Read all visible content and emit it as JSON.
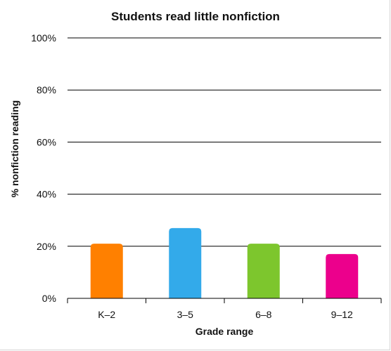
{
  "chart_data": {
    "type": "bar",
    "title": "Students read little nonfiction",
    "xlabel": "Grade range",
    "ylabel": "% nonfiction reading",
    "categories": [
      "K–2",
      "3–5",
      "6–8",
      "9–12"
    ],
    "values": [
      21,
      27,
      21,
      17
    ],
    "colors": [
      "#ff8000",
      "#33aaea",
      "#7dc62d",
      "#ec008c"
    ],
    "ylim": [
      0,
      100
    ],
    "yticks": [
      0,
      20,
      40,
      60,
      80,
      100
    ],
    "ytick_labels": [
      "0%",
      "20%",
      "40%",
      "60%",
      "80%",
      "100%"
    ],
    "grid": true,
    "legend": "none"
  }
}
